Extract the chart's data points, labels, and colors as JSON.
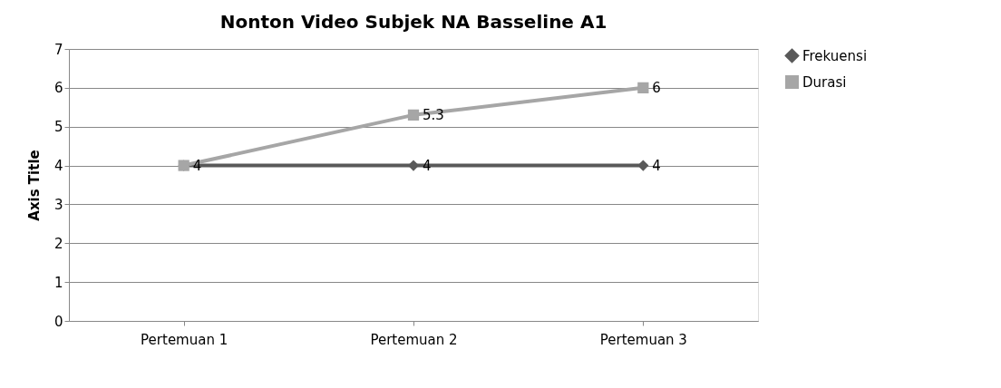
{
  "chart_data": {
    "type": "line",
    "title": "Nonton Video Subjek NA Basseline A1",
    "ylabel": "Axis Title",
    "categories": [
      "Pertemuan 1",
      "Pertemuan 2",
      "Pertemuan 3"
    ],
    "series": [
      {
        "name": "Frekuensi",
        "color": "#595959",
        "values": [
          4,
          4,
          4
        ],
        "marker": "diamond",
        "value_labels": [
          "4",
          "4",
          "4"
        ]
      },
      {
        "name": "Durasi",
        "color": "#a6a6a6",
        "values": [
          4,
          5.3,
          6
        ],
        "marker": "square",
        "value_labels": [
          null,
          "5.3",
          "6"
        ]
      }
    ],
    "ylim": [
      0,
      7
    ],
    "yticks": [
      0,
      1,
      2,
      3,
      4,
      5,
      6,
      7
    ],
    "grid": "y",
    "legend": "right",
    "line_style": "solid"
  }
}
